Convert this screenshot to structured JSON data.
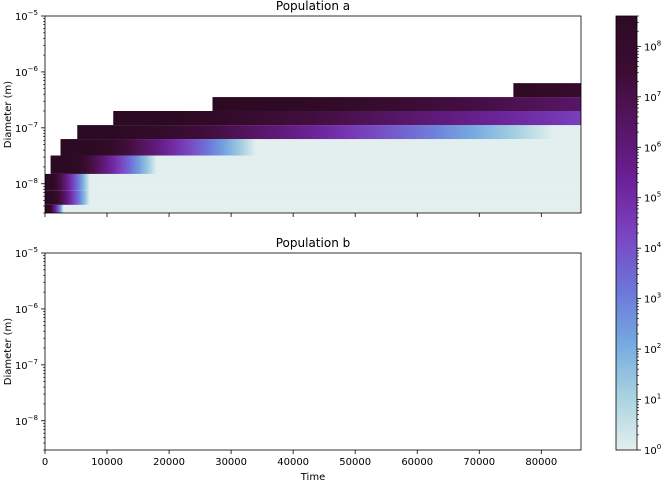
{
  "chart_data": [
    {
      "type": "heatmap",
      "title": "Population a",
      "xlabel": "",
      "ylabel": "Diameter (m)",
      "xlim": [
        0,
        86400
      ],
      "ylim": [
        3e-09,
        1e-05
      ],
      "yscale": "log",
      "x_ticks": [
        0,
        10000,
        20000,
        30000,
        40000,
        50000,
        60000,
        70000,
        80000
      ],
      "x_tick_labels_shown": false,
      "y_ticks": [
        {
          "value": 1e-08,
          "base": "10",
          "exp": "−8"
        },
        {
          "value": 1e-07,
          "base": "10",
          "exp": "−7"
        },
        {
          "value": 1e-06,
          "base": "10",
          "exp": "−6"
        },
        {
          "value": 1e-05,
          "base": "10",
          "exp": "−5"
        }
      ],
      "colorscale_log10_range": [
        0,
        8.6
      ],
      "bins": [
        {
          "d_low": 3e-09,
          "d_high": 4.2e-09,
          "t_start": 0,
          "t_dark_end": 700,
          "t_fade_end": 3000
        },
        {
          "d_low": 4.2e-09,
          "d_high": 7.5e-09,
          "t_start": 0,
          "t_dark_end": 1500,
          "t_fade_end": 7200
        },
        {
          "d_low": 7.5e-09,
          "d_high": 1.5e-08,
          "t_start": 0,
          "t_dark_end": 1200,
          "t_fade_end": 7200
        },
        {
          "d_low": 1.5e-08,
          "d_high": 3.2e-08,
          "t_start": 900,
          "t_dark_end": 5000,
          "t_fade_end": 18000
        },
        {
          "d_low": 3.2e-08,
          "d_high": 6.3e-08,
          "t_start": 2500,
          "t_dark_end": 9000,
          "t_fade_end": 34000
        },
        {
          "d_low": 6.3e-08,
          "d_high": 1.12e-07,
          "t_start": 5200,
          "t_dark_end": 14000,
          "t_fade_end": 82000
        },
        {
          "d_low": 1.12e-07,
          "d_high": 2e-07,
          "t_start": 11000,
          "t_dark_end": 22000,
          "t_fade_end": 140000
        },
        {
          "d_low": 2e-07,
          "d_high": 3.55e-07,
          "t_start": 27000,
          "t_dark_end": 38000,
          "t_fade_end": 200000
        },
        {
          "d_low": 3.55e-07,
          "d_high": 6.3e-07,
          "t_start": 75500,
          "t_dark_end": 77000,
          "t_fade_end": 170000
        }
      ]
    },
    {
      "type": "heatmap",
      "title": "Population b",
      "xlabel": "Time",
      "ylabel": "Diameter (m)",
      "xlim": [
        0,
        86400
      ],
      "ylim": [
        3e-09,
        1e-05
      ],
      "yscale": "log",
      "x_ticks": [
        0,
        10000,
        20000,
        30000,
        40000,
        50000,
        60000,
        70000,
        80000
      ],
      "x_tick_labels": [
        "0",
        "10000",
        "20000",
        "30000",
        "40000",
        "50000",
        "60000",
        "70000",
        "80000"
      ],
      "y_ticks": [
        {
          "value": 1e-08,
          "base": "10",
          "exp": "−8"
        },
        {
          "value": 1e-07,
          "base": "10",
          "exp": "−7"
        },
        {
          "value": 1e-06,
          "base": "10",
          "exp": "−6"
        },
        {
          "value": 1e-05,
          "base": "10",
          "exp": "−5"
        }
      ],
      "bins": []
    }
  ],
  "colorbar": {
    "scale": "log",
    "range": [
      1,
      400000000.0
    ],
    "ticks": [
      {
        "value": 1.0,
        "base": "10",
        "exp": "0"
      },
      {
        "value": 10.0,
        "base": "10",
        "exp": "1"
      },
      {
        "value": 100.0,
        "base": "10",
        "exp": "2"
      },
      {
        "value": 1000.0,
        "base": "10",
        "exp": "3"
      },
      {
        "value": 10000.0,
        "base": "10",
        "exp": "4"
      },
      {
        "value": 100000.0,
        "base": "10",
        "exp": "5"
      },
      {
        "value": 1000000.0,
        "base": "10",
        "exp": "6"
      },
      {
        "value": 10000000.0,
        "base": "10",
        "exp": "7"
      },
      {
        "value": 100000000.0,
        "base": "10",
        "exp": "8"
      }
    ],
    "colors": [
      "#e3efef",
      "#a7d2e0",
      "#74a8e0",
      "#6d73d8",
      "#7a43c0",
      "#6b2096",
      "#561563",
      "#3b0c33",
      "#2d0a23"
    ]
  }
}
